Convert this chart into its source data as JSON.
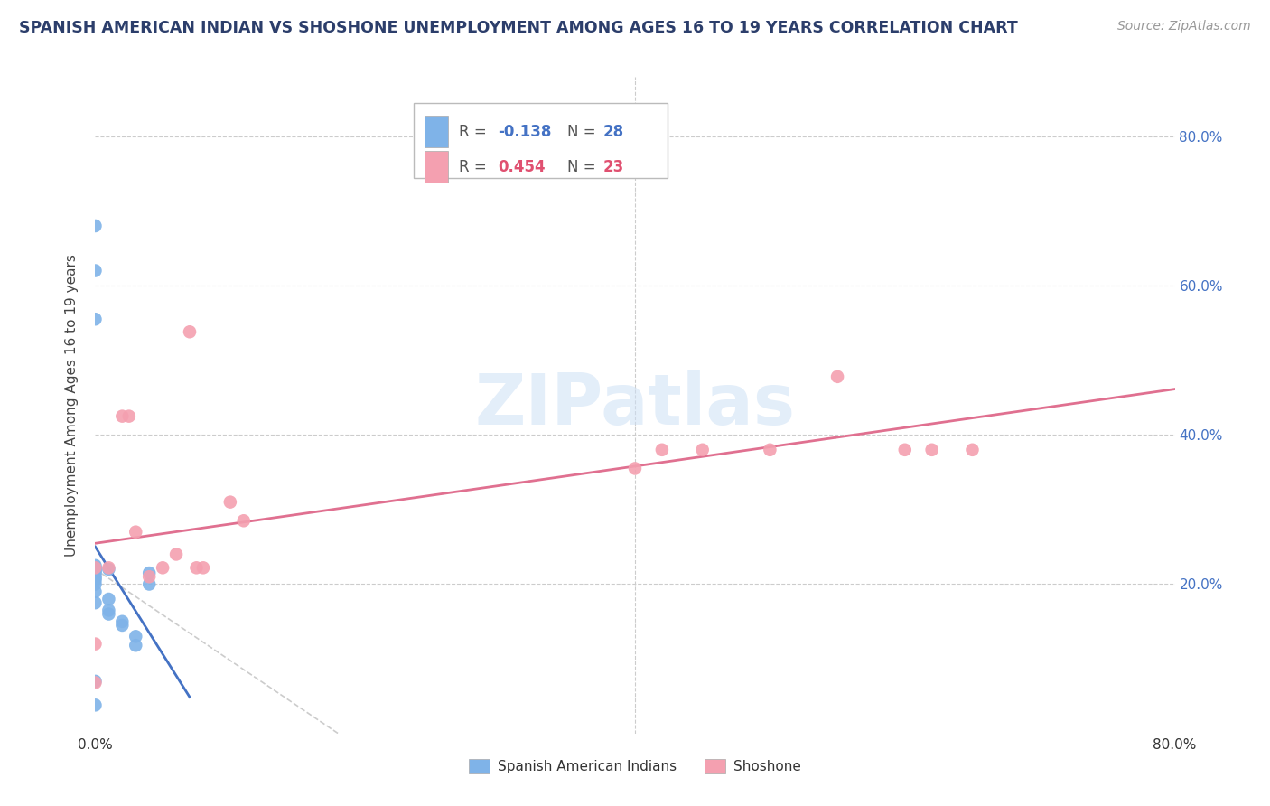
{
  "title": "SPANISH AMERICAN INDIAN VS SHOSHONE UNEMPLOYMENT AMONG AGES 16 TO 19 YEARS CORRELATION CHART",
  "source": "Source: ZipAtlas.com",
  "ylabel": "Unemployment Among Ages 16 to 19 years",
  "xlim": [
    0.0,
    0.8
  ],
  "ylim": [
    0.0,
    0.88
  ],
  "grid_color": "#cccccc",
  "background_color": "#ffffff",
  "title_color": "#2c3e6b",
  "source_color": "#999999",
  "color_blue": "#7fb3e8",
  "color_pink": "#f4a0b0",
  "color_blue_text": "#4472c4",
  "color_pink_text": "#e05070",
  "trend_blue": "#4472c4",
  "trend_pink": "#e07090",
  "watermark": "ZIPatlas",
  "legend_label1": "Spanish American Indians",
  "legend_label2": "Shoshone",
  "blue_x": [
    0.0,
    0.0,
    0.0,
    0.0,
    0.0,
    0.0,
    0.0,
    0.0,
    0.0,
    0.0,
    0.0,
    0.0,
    0.0,
    0.01,
    0.01,
    0.01,
    0.02,
    0.02,
    0.03,
    0.03,
    0.04,
    0.04,
    0.0,
    0.0,
    0.0,
    0.01,
    0.0,
    0.0
  ],
  "blue_y": [
    0.22,
    0.2,
    0.19,
    0.175,
    0.215,
    0.215,
    0.225,
    0.208,
    0.205,
    0.218,
    0.222,
    0.21,
    0.222,
    0.16,
    0.165,
    0.18,
    0.145,
    0.15,
    0.13,
    0.118,
    0.2,
    0.215,
    0.555,
    0.62,
    0.68,
    0.22,
    0.038,
    0.07
  ],
  "pink_x": [
    0.0,
    0.0,
    0.0,
    0.01,
    0.02,
    0.025,
    0.03,
    0.04,
    0.05,
    0.06,
    0.07,
    0.075,
    0.1,
    0.11,
    0.4,
    0.42,
    0.45,
    0.5,
    0.55,
    0.6,
    0.62,
    0.65,
    0.08
  ],
  "pink_y": [
    0.222,
    0.12,
    0.068,
    0.222,
    0.425,
    0.425,
    0.27,
    0.21,
    0.222,
    0.24,
    0.538,
    0.222,
    0.31,
    0.285,
    0.355,
    0.38,
    0.38,
    0.38,
    0.478,
    0.38,
    0.38,
    0.38,
    0.222
  ]
}
